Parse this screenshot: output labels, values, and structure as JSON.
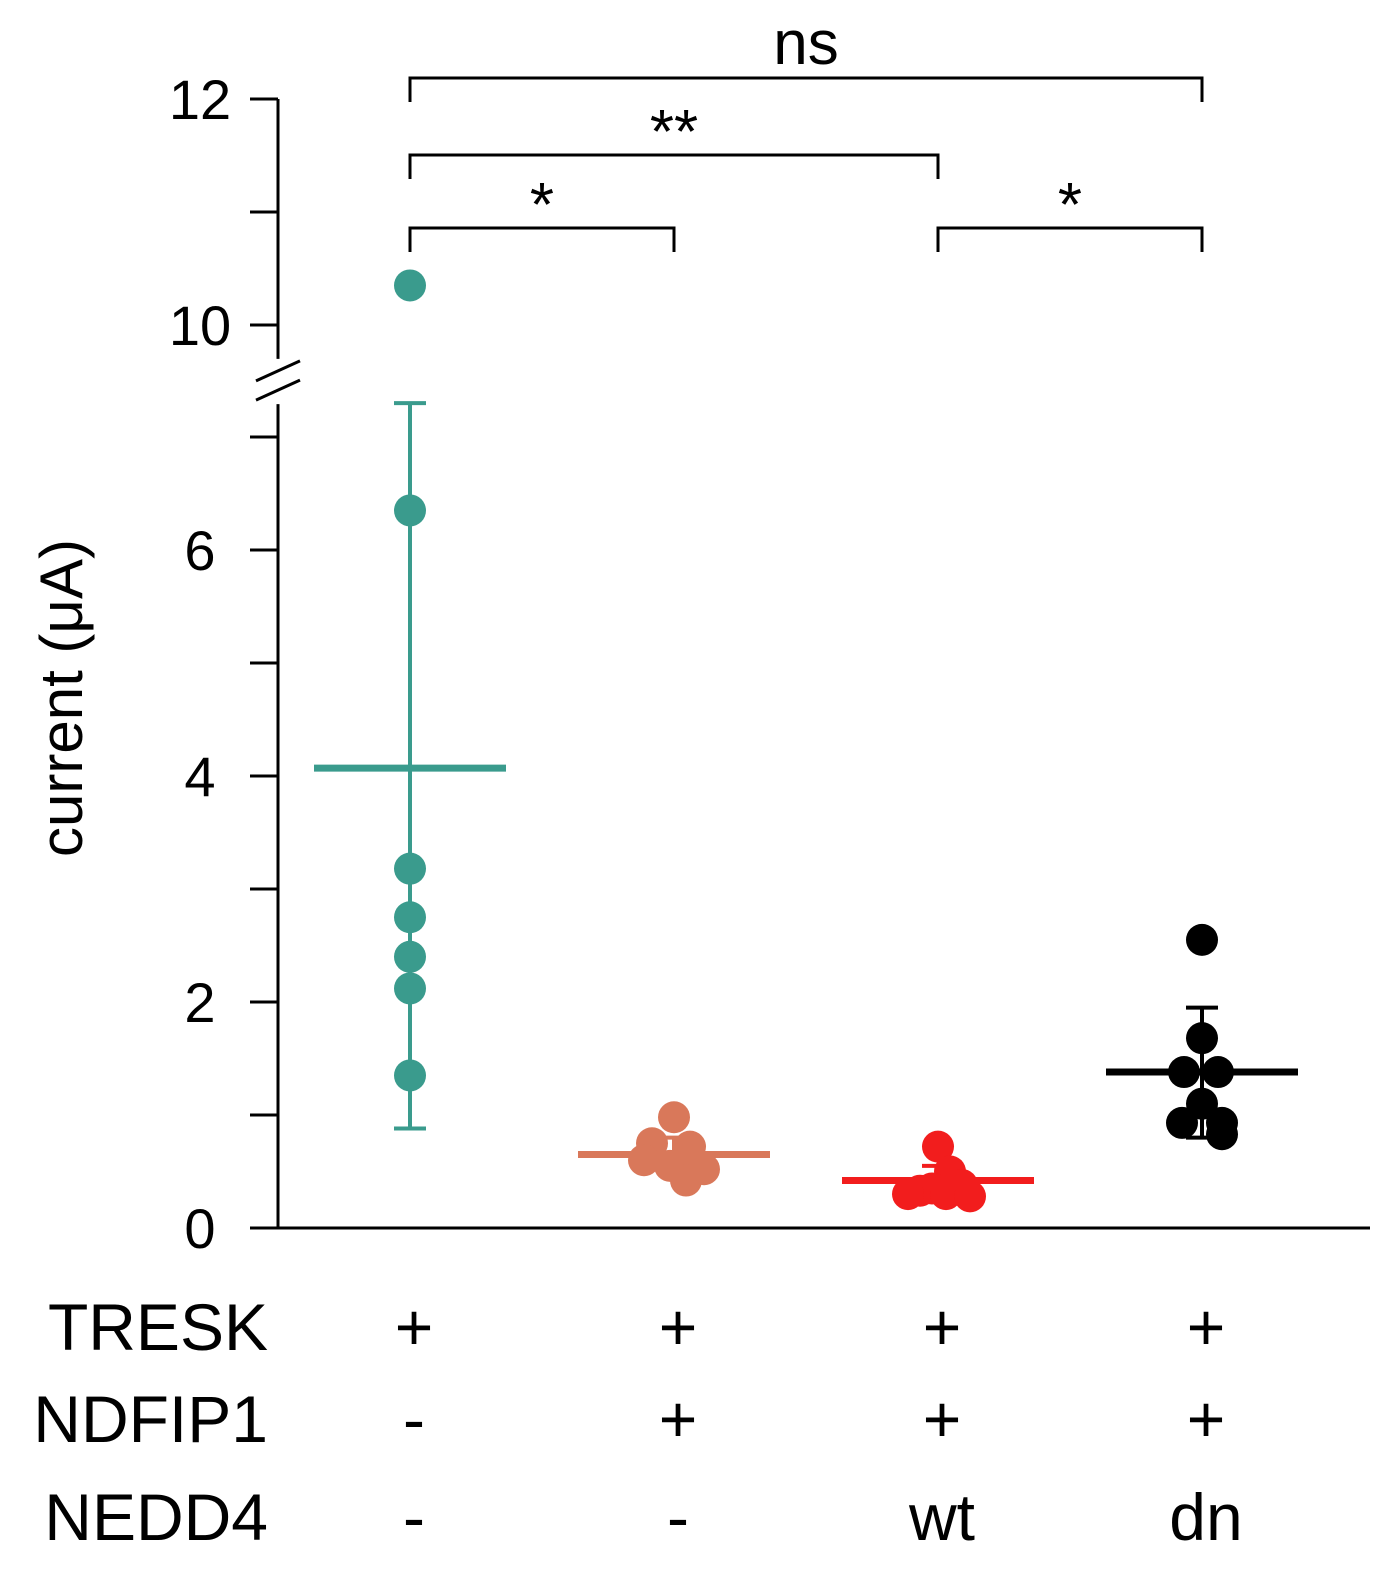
{
  "chart_data": {
    "type": "scatter",
    "ylabel": "current (μA)",
    "ylim": [
      0,
      12
    ],
    "y_axis_break": [
      7.3,
      9.7
    ],
    "major_ticks": [
      0,
      2,
      4,
      6,
      10,
      12
    ],
    "minor_ticks": [
      1,
      3,
      5,
      7,
      11
    ],
    "groups": [
      {
        "name": "TRESK",
        "color": "#3a9b8d",
        "points": [
          10.35,
          6.35,
          3.18,
          2.75,
          2.4,
          2.12,
          1.35
        ],
        "point_offsets": [
          0,
          0,
          0,
          0,
          0,
          0,
          0
        ],
        "mean": 4.07,
        "err_low": 0.88,
        "err_high": 7.3
      },
      {
        "name": "TRESK + NDFIP1",
        "color": "#d9785a",
        "points": [
          0.98,
          0.75,
          0.72,
          0.6,
          0.55,
          0.55,
          0.52,
          0.42
        ],
        "point_offsets": [
          0,
          -0.55,
          0.4,
          -0.75,
          -0.1,
          0.2,
          0.75,
          0.3
        ],
        "mean": 0.65,
        "err_low": 0.48,
        "err_high": 0.8
      },
      {
        "name": "TRESK + NDFIP1 + NEDD4 wt",
        "color": "#f21d1d",
        "points": [
          0.72,
          0.5,
          0.38,
          0.35,
          0.33,
          0.3,
          0.3,
          0.28
        ],
        "point_offsets": [
          0,
          0.3,
          0.6,
          -0.15,
          -0.45,
          -0.75,
          0.2,
          0.8
        ],
        "mean": 0.42,
        "err_low": 0.28,
        "err_high": 0.55
      },
      {
        "name": "TRESK + NDFIP1 + NEDD4 dn",
        "color": "#000000",
        "points": [
          2.55,
          1.68,
          1.38,
          1.38,
          1.1,
          0.93,
          0.93,
          0.83
        ],
        "point_offsets": [
          0,
          0,
          -0.45,
          0.4,
          0,
          -0.5,
          0.5,
          0.5
        ],
        "mean": 1.38,
        "err_low": 0.8,
        "err_high": 1.95
      }
    ],
    "significance": [
      {
        "label": "ns",
        "from": 0,
        "to": 3,
        "level": 3
      },
      {
        "label": "**",
        "from": 0,
        "to": 2,
        "level": 2
      },
      {
        "label": "*",
        "from": 0,
        "to": 1,
        "level": 1
      },
      {
        "label": "*",
        "from": 2,
        "to": 3,
        "level": 1
      }
    ],
    "conditions": [
      {
        "label": "TRESK",
        "values": [
          "+",
          "+",
          "+",
          "+"
        ]
      },
      {
        "label": "NDFIP1",
        "values": [
          "-",
          "+",
          "+",
          "+"
        ]
      },
      {
        "label": "NEDD4",
        "values": [
          "-",
          "-",
          "wt",
          "dn"
        ]
      }
    ]
  }
}
